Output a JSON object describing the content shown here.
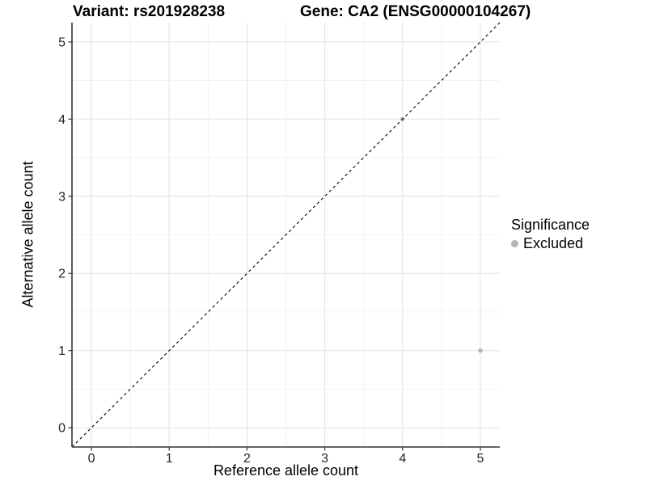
{
  "header": {
    "variant_title": "Variant: rs201928238",
    "gene_title": "Gene: CA2 (ENSG00000104267)"
  },
  "legend": {
    "title": "Significance",
    "items": [
      {
        "label": "Excluded",
        "color": "#b5b5b5"
      }
    ]
  },
  "chart_data": {
    "type": "scatter",
    "titles": [
      "Variant: rs201928238",
      "Gene: CA2 (ENSG00000104267)"
    ],
    "xlabel": "Reference allele count",
    "ylabel": "Alternative allele count",
    "xlim": [
      -0.25,
      5.25
    ],
    "ylim": [
      -0.25,
      5.25
    ],
    "x_ticks": [
      0,
      1,
      2,
      3,
      4,
      5
    ],
    "y_ticks": [
      0,
      1,
      2,
      3,
      4,
      5
    ],
    "grid": "major+minor",
    "legend_position": "right",
    "series": [
      {
        "name": "Excluded",
        "color": "#b5b5b5",
        "point_radius": 2.8,
        "points": [
          [
            4,
            4
          ],
          [
            5,
            1
          ]
        ]
      }
    ],
    "reference_line": {
      "kind": "identity y=x",
      "style": "dashed",
      "color": "#000000"
    }
  },
  "colors": {
    "background": "#ffffff",
    "grid_major": "#e4e4e4",
    "grid_minor": "#f1f1f1",
    "axis_line": "#333333",
    "tick_mark": "#333333",
    "tick_label": "#262626",
    "title_text": "#000000",
    "point": "#b5b5b5",
    "dashed_line": "#000000"
  }
}
